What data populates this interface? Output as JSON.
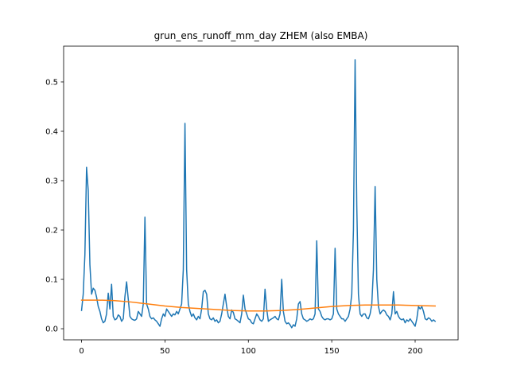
{
  "chart_data": {
    "type": "line",
    "title": "grun_ens_runoff_mm_day ZHEM (also EMBA)",
    "xlabel": "",
    "ylabel": "",
    "xlim": [
      -10.75,
      225.75
    ],
    "ylim": [
      -0.0225,
      0.5725
    ],
    "xticks": [
      0,
      50,
      100,
      150,
      200
    ],
    "yticks": [
      0.0,
      0.1,
      0.2,
      0.3,
      0.4,
      0.5
    ],
    "xtick_labels": [
      "0",
      "50",
      "100",
      "150",
      "200"
    ],
    "ytick_labels": [
      "0.0",
      "0.1",
      "0.2",
      "0.3",
      "0.4",
      "0.5"
    ],
    "grid": false,
    "legend": "none",
    "series": [
      {
        "color": "#1f77b4",
        "points": [
          [
            0,
            0.037
          ],
          [
            1,
            0.07
          ],
          [
            2,
            0.15
          ],
          [
            3,
            0.327
          ],
          [
            4,
            0.28
          ],
          [
            5,
            0.13
          ],
          [
            6,
            0.07
          ],
          [
            7,
            0.082
          ],
          [
            8,
            0.078
          ],
          [
            9,
            0.064
          ],
          [
            10,
            0.045
          ],
          [
            11,
            0.035
          ],
          [
            12,
            0.02
          ],
          [
            13,
            0.012
          ],
          [
            14,
            0.015
          ],
          [
            15,
            0.03
          ],
          [
            16,
            0.072
          ],
          [
            17,
            0.04
          ],
          [
            18,
            0.09
          ],
          [
            19,
            0.025
          ],
          [
            20,
            0.018
          ],
          [
            21,
            0.02
          ],
          [
            22,
            0.028
          ],
          [
            23,
            0.025
          ],
          [
            24,
            0.015
          ],
          [
            25,
            0.02
          ],
          [
            26,
            0.065
          ],
          [
            27,
            0.095
          ],
          [
            28,
            0.06
          ],
          [
            29,
            0.025
          ],
          [
            30,
            0.02
          ],
          [
            31,
            0.018
          ],
          [
            32,
            0.017
          ],
          [
            33,
            0.02
          ],
          [
            34,
            0.035
          ],
          [
            35,
            0.03
          ],
          [
            36,
            0.025
          ],
          [
            37,
            0.05
          ],
          [
            38,
            0.226
          ],
          [
            39,
            0.05
          ],
          [
            40,
            0.04
          ],
          [
            41,
            0.025
          ],
          [
            42,
            0.02
          ],
          [
            43,
            0.022
          ],
          [
            44,
            0.018
          ],
          [
            45,
            0.015
          ],
          [
            46,
            0.01
          ],
          [
            47,
            0.005
          ],
          [
            48,
            0.02
          ],
          [
            49,
            0.03
          ],
          [
            50,
            0.025
          ],
          [
            51,
            0.04
          ],
          [
            52,
            0.035
          ],
          [
            53,
            0.03
          ],
          [
            54,
            0.025
          ],
          [
            55,
            0.03
          ],
          [
            56,
            0.028
          ],
          [
            57,
            0.035
          ],
          [
            58,
            0.03
          ],
          [
            59,
            0.04
          ],
          [
            60,
            0.05
          ],
          [
            61,
            0.12
          ],
          [
            62,
            0.416
          ],
          [
            63,
            0.12
          ],
          [
            64,
            0.05
          ],
          [
            65,
            0.035
          ],
          [
            66,
            0.025
          ],
          [
            67,
            0.03
          ],
          [
            68,
            0.022
          ],
          [
            69,
            0.018
          ],
          [
            70,
            0.025
          ],
          [
            71,
            0.02
          ],
          [
            72,
            0.04
          ],
          [
            73,
            0.075
          ],
          [
            74,
            0.078
          ],
          [
            75,
            0.07
          ],
          [
            76,
            0.03
          ],
          [
            77,
            0.02
          ],
          [
            78,
            0.018
          ],
          [
            79,
            0.022
          ],
          [
            80,
            0.015
          ],
          [
            81,
            0.018
          ],
          [
            82,
            0.012
          ],
          [
            83,
            0.015
          ],
          [
            84,
            0.03
          ],
          [
            85,
            0.05
          ],
          [
            86,
            0.07
          ],
          [
            87,
            0.045
          ],
          [
            88,
            0.025
          ],
          [
            89,
            0.02
          ],
          [
            90,
            0.038
          ],
          [
            91,
            0.033
          ],
          [
            92,
            0.02
          ],
          [
            93,
            0.018
          ],
          [
            94,
            0.015
          ],
          [
            95,
            0.012
          ],
          [
            96,
            0.03
          ],
          [
            97,
            0.068
          ],
          [
            98,
            0.04
          ],
          [
            99,
            0.03
          ],
          [
            100,
            0.02
          ],
          [
            101,
            0.018
          ],
          [
            102,
            0.012
          ],
          [
            103,
            0.01
          ],
          [
            104,
            0.02
          ],
          [
            105,
            0.03
          ],
          [
            106,
            0.025
          ],
          [
            107,
            0.018
          ],
          [
            108,
            0.015
          ],
          [
            109,
            0.02
          ],
          [
            110,
            0.08
          ],
          [
            111,
            0.04
          ],
          [
            112,
            0.015
          ],
          [
            113,
            0.018
          ],
          [
            114,
            0.02
          ],
          [
            115,
            0.022
          ],
          [
            116,
            0.025
          ],
          [
            117,
            0.02
          ],
          [
            118,
            0.018
          ],
          [
            119,
            0.03
          ],
          [
            120,
            0.1
          ],
          [
            121,
            0.035
          ],
          [
            122,
            0.015
          ],
          [
            123,
            0.01
          ],
          [
            124,
            0.012
          ],
          [
            125,
            0.008
          ],
          [
            126,
            0.002
          ],
          [
            127,
            0.008
          ],
          [
            128,
            0.005
          ],
          [
            129,
            0.02
          ],
          [
            130,
            0.05
          ],
          [
            131,
            0.055
          ],
          [
            132,
            0.03
          ],
          [
            133,
            0.02
          ],
          [
            134,
            0.018
          ],
          [
            135,
            0.015
          ],
          [
            136,
            0.017
          ],
          [
            137,
            0.02
          ],
          [
            138,
            0.018
          ],
          [
            139,
            0.02
          ],
          [
            140,
            0.03
          ],
          [
            141,
            0.178
          ],
          [
            142,
            0.04
          ],
          [
            143,
            0.035
          ],
          [
            144,
            0.025
          ],
          [
            145,
            0.02
          ],
          [
            146,
            0.018
          ],
          [
            147,
            0.02
          ],
          [
            148,
            0.02
          ],
          [
            149,
            0.018
          ],
          [
            150,
            0.02
          ],
          [
            151,
            0.03
          ],
          [
            152,
            0.163
          ],
          [
            153,
            0.04
          ],
          [
            154,
            0.03
          ],
          [
            155,
            0.025
          ],
          [
            156,
            0.02
          ],
          [
            157,
            0.02
          ],
          [
            158,
            0.015
          ],
          [
            159,
            0.02
          ],
          [
            160,
            0.025
          ],
          [
            161,
            0.04
          ],
          [
            162,
            0.07
          ],
          [
            163,
            0.2
          ],
          [
            164,
            0.545
          ],
          [
            165,
            0.25
          ],
          [
            166,
            0.07
          ],
          [
            167,
            0.03
          ],
          [
            168,
            0.025
          ],
          [
            169,
            0.03
          ],
          [
            170,
            0.03
          ],
          [
            171,
            0.022
          ],
          [
            172,
            0.02
          ],
          [
            173,
            0.03
          ],
          [
            174,
            0.05
          ],
          [
            175,
            0.12
          ],
          [
            176,
            0.288
          ],
          [
            177,
            0.1
          ],
          [
            178,
            0.045
          ],
          [
            179,
            0.03
          ],
          [
            180,
            0.035
          ],
          [
            181,
            0.038
          ],
          [
            182,
            0.035
          ],
          [
            183,
            0.028
          ],
          [
            184,
            0.025
          ],
          [
            185,
            0.018
          ],
          [
            186,
            0.03
          ],
          [
            187,
            0.075
          ],
          [
            188,
            0.03
          ],
          [
            189,
            0.035
          ],
          [
            190,
            0.025
          ],
          [
            191,
            0.02
          ],
          [
            192,
            0.018
          ],
          [
            193,
            0.02
          ],
          [
            194,
            0.012
          ],
          [
            195,
            0.018
          ],
          [
            196,
            0.015
          ],
          [
            197,
            0.02
          ],
          [
            198,
            0.015
          ],
          [
            199,
            0.01
          ],
          [
            200,
            0.005
          ],
          [
            201,
            0.02
          ],
          [
            202,
            0.045
          ],
          [
            203,
            0.04
          ],
          [
            204,
            0.045
          ],
          [
            205,
            0.035
          ],
          [
            206,
            0.02
          ],
          [
            207,
            0.018
          ],
          [
            208,
            0.022
          ],
          [
            209,
            0.02
          ],
          [
            210,
            0.015
          ],
          [
            211,
            0.018
          ],
          [
            212,
            0.015
          ]
        ]
      },
      {
        "color": "#ff7f0e",
        "points": [
          [
            0,
            0.058
          ],
          [
            10,
            0.058
          ],
          [
            20,
            0.057
          ],
          [
            30,
            0.054
          ],
          [
            40,
            0.05
          ],
          [
            50,
            0.046
          ],
          [
            60,
            0.043
          ],
          [
            70,
            0.041
          ],
          [
            80,
            0.039
          ],
          [
            90,
            0.037
          ],
          [
            100,
            0.036
          ],
          [
            110,
            0.036
          ],
          [
            120,
            0.037
          ],
          [
            130,
            0.039
          ],
          [
            140,
            0.042
          ],
          [
            150,
            0.045
          ],
          [
            160,
            0.047
          ],
          [
            170,
            0.048
          ],
          [
            180,
            0.048
          ],
          [
            190,
            0.048
          ],
          [
            200,
            0.047
          ],
          [
            212,
            0.046
          ]
        ]
      }
    ]
  }
}
